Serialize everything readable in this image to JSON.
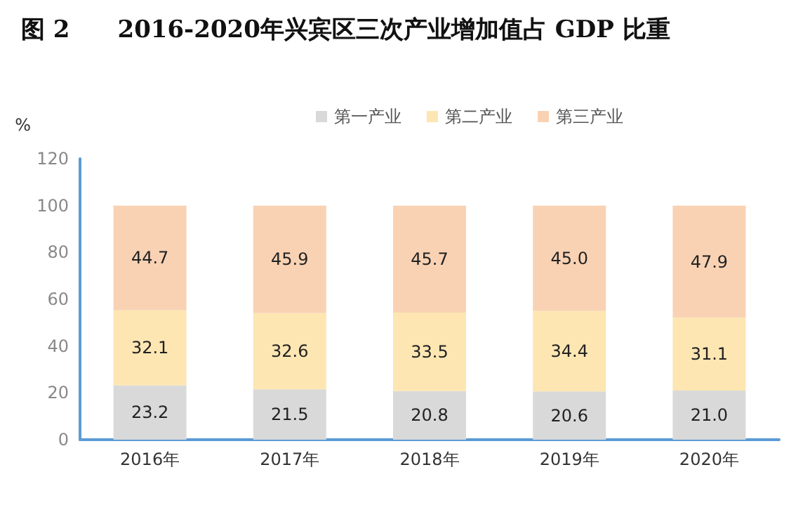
{
  "chart_data": {
    "type": "bar",
    "title": "图 2　　2016-2020年兴宾区三次产业增加值占 GDP 比重",
    "ylabel": "%",
    "categories": [
      "2016年",
      "2017年",
      "2018年",
      "2019年",
      "2020年"
    ],
    "series": [
      {
        "name": "第一产业",
        "color": "#d9d9d9",
        "values": [
          23.2,
          21.5,
          20.8,
          20.6,
          21.0
        ],
        "value_labels": [
          "23.2",
          "21.5",
          "20.8",
          "20.6",
          "21.0"
        ]
      },
      {
        "name": "第二产业",
        "color": "#fde6b2",
        "values": [
          32.1,
          32.6,
          33.5,
          34.4,
          31.1
        ],
        "value_labels": [
          "32.1",
          "32.6",
          "33.5",
          "34.4",
          "31.1"
        ]
      },
      {
        "name": "第三产业",
        "color": "#f9d2b4",
        "values": [
          44.7,
          45.9,
          45.7,
          45.0,
          47.9
        ],
        "value_labels": [
          "44.7",
          "45.9",
          "45.7",
          "45.0",
          "47.9"
        ]
      }
    ],
    "stacked": true,
    "ylim": [
      0,
      120
    ],
    "yticks": [
      0,
      20,
      40,
      60,
      80,
      100,
      120
    ],
    "grid": false,
    "legend": "top"
  }
}
